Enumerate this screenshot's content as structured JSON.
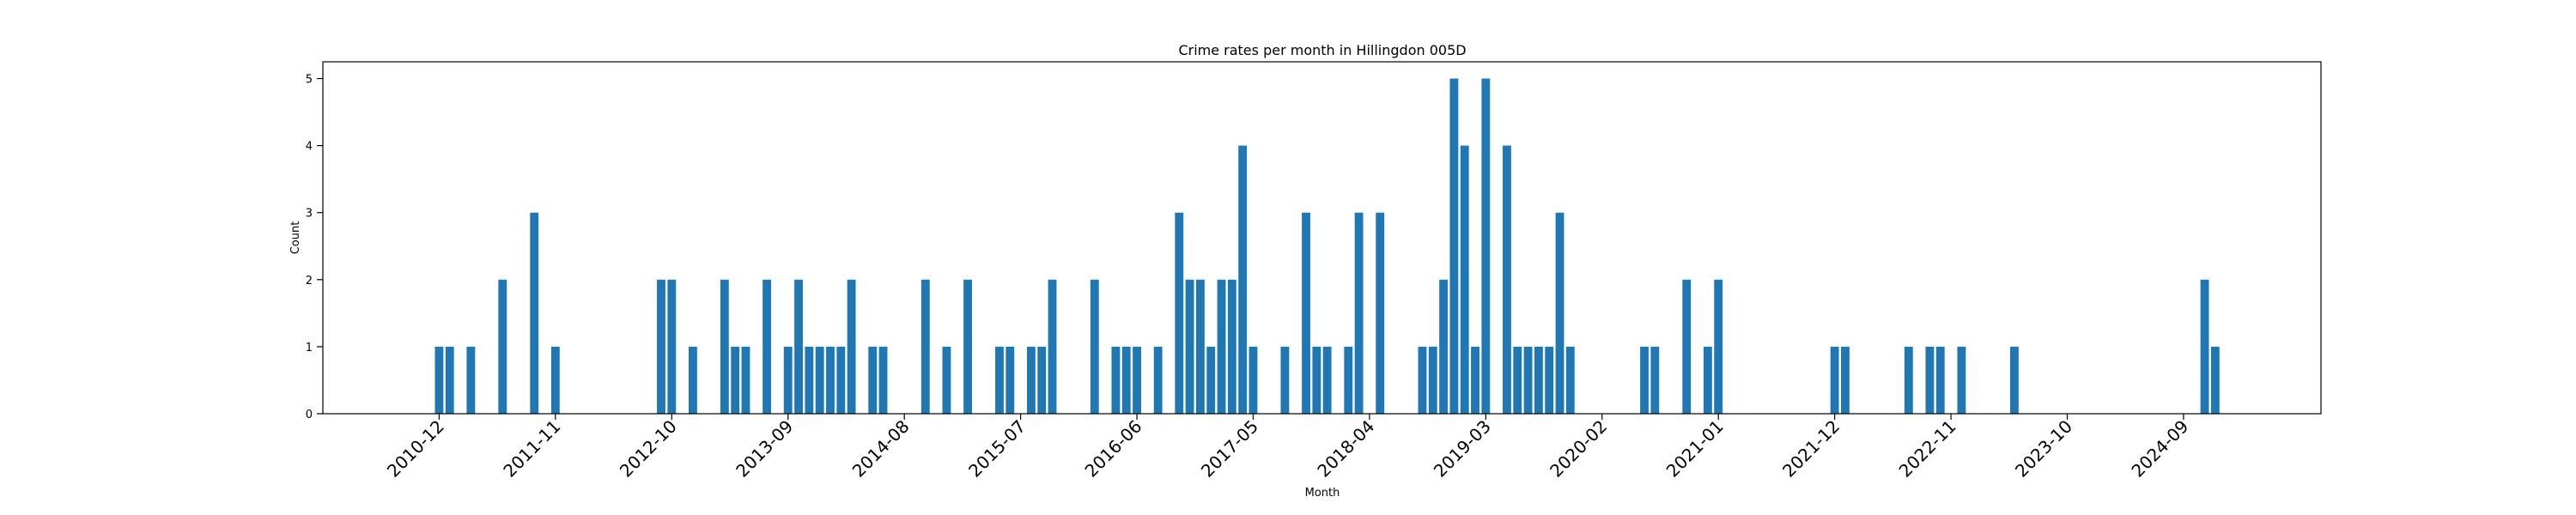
{
  "chart_data": {
    "type": "bar",
    "title": "Crime rates per month in Hillingdon 005D",
    "xlabel": "Month",
    "ylabel": "Count",
    "ylim": [
      0,
      5.25
    ],
    "yticks": [
      0,
      1,
      2,
      3,
      4,
      5
    ],
    "xlim": [
      "2010-01",
      "2025-10"
    ],
    "xtick_labels": [
      "2010-12",
      "2011-11",
      "2012-10",
      "2013-09",
      "2014-08",
      "2015-07",
      "2016-06",
      "2017-05",
      "2018-04",
      "2019-03",
      "2020-02",
      "2021-01",
      "2021-12",
      "2022-11",
      "2023-10",
      "2024-09"
    ],
    "bar_color": "#1f77b4",
    "grid": false,
    "x": [
      "2010-12",
      "2011-01",
      "2011-03",
      "2011-06",
      "2011-09",
      "2011-11",
      "2012-09",
      "2012-10",
      "2012-12",
      "2013-03",
      "2013-04",
      "2013-05",
      "2013-07",
      "2013-09",
      "2013-10",
      "2013-11",
      "2013-12",
      "2014-01",
      "2014-02",
      "2014-03",
      "2014-05",
      "2014-06",
      "2014-10",
      "2014-12",
      "2015-02",
      "2015-05",
      "2015-06",
      "2015-08",
      "2015-09",
      "2015-10",
      "2016-02",
      "2016-04",
      "2016-05",
      "2016-06",
      "2016-08",
      "2016-10",
      "2016-11",
      "2016-12",
      "2017-01",
      "2017-02",
      "2017-03",
      "2017-04",
      "2017-05",
      "2017-08",
      "2017-10",
      "2017-11",
      "2017-12",
      "2018-02",
      "2018-03",
      "2018-05",
      "2018-09",
      "2018-10",
      "2018-11",
      "2018-12",
      "2019-01",
      "2019-02",
      "2019-03",
      "2019-05",
      "2019-06",
      "2019-07",
      "2019-08",
      "2019-09",
      "2019-10",
      "2019-11",
      "2020-06",
      "2020-07",
      "2020-10",
      "2020-12",
      "2021-01",
      "2021-12",
      "2022-01",
      "2022-07",
      "2022-09",
      "2022-10",
      "2022-12",
      "2023-05",
      "2024-11",
      "2024-12"
    ],
    "values": [
      1,
      1,
      1,
      2,
      3,
      1,
      2,
      2,
      1,
      2,
      1,
      1,
      2,
      1,
      2,
      1,
      1,
      1,
      1,
      2,
      1,
      1,
      2,
      1,
      2,
      1,
      1,
      1,
      1,
      2,
      2,
      1,
      1,
      1,
      1,
      3,
      2,
      2,
      1,
      2,
      2,
      4,
      1,
      1,
      3,
      1,
      1,
      1,
      3,
      3,
      1,
      1,
      2,
      5,
      4,
      1,
      5,
      4,
      1,
      1,
      1,
      1,
      3,
      1,
      1,
      1,
      2,
      1,
      2,
      1,
      1,
      1,
      1,
      1,
      1,
      1,
      2,
      1
    ]
  }
}
